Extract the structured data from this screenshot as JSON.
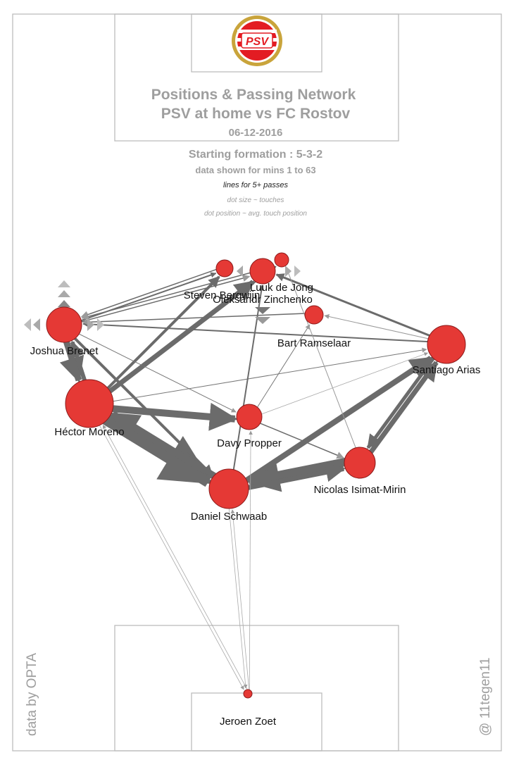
{
  "header": {
    "title_line1": "Positions & Passing Network",
    "title_line2": "PSV at home vs FC Rostov",
    "date": "06-12-2016",
    "formation": "Starting formation : 5-3-2",
    "minutes": "data shown for mins 1 to 63",
    "lines_note": "lines for 5+ passes",
    "dot_size_note": "dot size ~ touches",
    "dot_position_note": "dot position ~ avg. touch position"
  },
  "logo": {
    "text": "PSV",
    "colors": {
      "red": "#e31c23",
      "gold": "#c9a43b",
      "white": "#ffffff"
    }
  },
  "credits": {
    "source": "data by OPTA",
    "author": "@ 11tegen11"
  },
  "colors": {
    "dot": "#e53935",
    "dot_stroke": "#8b1a1a",
    "line": "#6b6b6b",
    "pitch": "#bdbdbd",
    "header_text": "#9e9e9e",
    "label": "#111111"
  },
  "players": [
    {
      "id": "brenet",
      "name": "Joshua Brenet",
      "size": "large"
    },
    {
      "id": "moreno",
      "name": "Héctor Moreno",
      "size": "xlarge"
    },
    {
      "id": "schwaab",
      "name": "Daniel Schwaab",
      "size": "xlarge"
    },
    {
      "id": "propper",
      "name": "Davy Propper",
      "size": "medium"
    },
    {
      "id": "isimat",
      "name": "Nicolas Isimat-Mirin",
      "size": "large"
    },
    {
      "id": "arias",
      "name": "Santiago Arias",
      "size": "large"
    },
    {
      "id": "ramselaar",
      "name": "Bart Ramselaar",
      "size": "small"
    },
    {
      "id": "dejong",
      "name": "Luuk de Jong",
      "size": "medium"
    },
    {
      "id": "bergwijn",
      "name": "Steven Bergwijn",
      "size": "small"
    },
    {
      "id": "zinchenko",
      "name": "Oleksandr Zinchenko",
      "size": "small"
    },
    {
      "id": "zoet",
      "name": "Jeroen Zoet",
      "size": "tiny"
    }
  ]
}
